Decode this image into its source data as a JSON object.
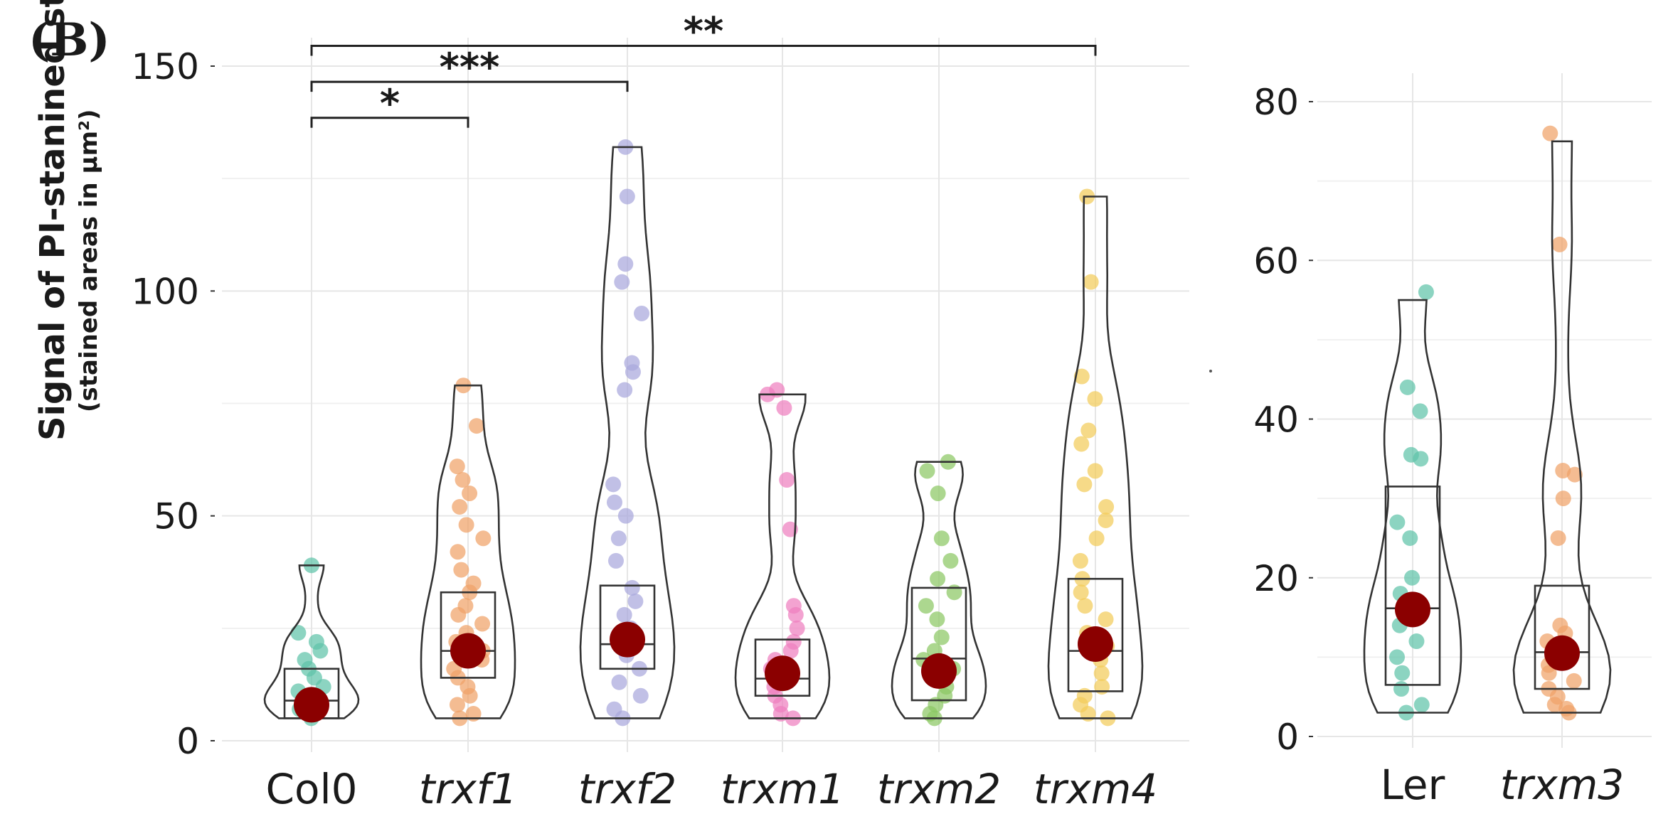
{
  "panel_label": "(B)",
  "chart_data": [
    {
      "type": "violin",
      "ylabel": "Signal of PI-stanined starch",
      "ylabel_sub": "(stained areas in µm²)",
      "ylim": [
        0,
        150
      ],
      "yticks": [
        0,
        50,
        100,
        150
      ],
      "grid": true,
      "categories": [
        "Col0",
        "trxf1",
        "trxf2",
        "trxm1",
        "trxm2",
        "trxm4"
      ],
      "italic_categories": [
        false,
        true,
        true,
        true,
        true,
        true
      ],
      "colors": [
        "#5fc4a9",
        "#f0a268",
        "#a9a8dc",
        "#ee7fbf",
        "#8cc864",
        "#f2cc5a"
      ],
      "groups": [
        {
          "name": "Col0",
          "mean": 8,
          "box": [
            5,
            16
          ],
          "violin_max": 39,
          "points": [
            5,
            6,
            7,
            8,
            9,
            10,
            11,
            12,
            14,
            16,
            18,
            20,
            22,
            24,
            39
          ]
        },
        {
          "name": "trxf1",
          "mean": 20,
          "box": [
            14,
            33
          ],
          "violin_max": 79,
          "points": [
            5,
            6,
            8,
            10,
            12,
            14,
            16,
            18,
            20,
            22,
            24,
            26,
            28,
            30,
            33,
            35,
            38,
            42,
            45,
            48,
            52,
            55,
            58,
            61,
            70,
            79
          ]
        },
        {
          "name": "trxf2",
          "mean": 22.5,
          "box": [
            16,
            34.5
          ],
          "violin_max": 132,
          "points": [
            5,
            7,
            10,
            13,
            16,
            19,
            22,
            25,
            28,
            31,
            34,
            40,
            45,
            50,
            53,
            57,
            78,
            82,
            84,
            95,
            102,
            106,
            121,
            132
          ]
        },
        {
          "name": "trxm1",
          "mean": 15,
          "box": [
            10,
            22.5
          ],
          "violin_max": 77,
          "points": [
            5,
            6,
            8,
            10,
            12,
            14,
            16,
            18,
            20,
            22,
            25,
            28,
            30,
            47,
            58,
            74,
            77,
            78
          ]
        },
        {
          "name": "trxm2",
          "mean": 15.5,
          "box": [
            9,
            34
          ],
          "violin_max": 62,
          "points": [
            5,
            6,
            8,
            10,
            12,
            14,
            16,
            18,
            20,
            23,
            27,
            30,
            33,
            36,
            40,
            45,
            55,
            60,
            62
          ]
        },
        {
          "name": "trxm4",
          "mean": 21.5,
          "box": [
            11,
            36
          ],
          "violin_max": 121,
          "points": [
            5,
            6,
            8,
            10,
            12,
            15,
            18,
            21,
            24,
            27,
            30,
            33,
            36,
            40,
            45,
            49,
            52,
            57,
            60,
            66,
            69,
            76,
            81,
            102,
            121
          ]
        }
      ],
      "significance": [
        {
          "from": "Col0",
          "to": "trxf1",
          "label": "*",
          "y": 138.5
        },
        {
          "from": "Col0",
          "to": "trxf2",
          "label": "***",
          "y": 146.5
        },
        {
          "from": "Col0",
          "to": "trxm4",
          "label": "**",
          "y": 154.5
        }
      ]
    },
    {
      "type": "violin",
      "ylim": [
        0,
        80
      ],
      "yticks": [
        0,
        20,
        40,
        60,
        80
      ],
      "grid": true,
      "categories": [
        "Ler",
        "trxm3"
      ],
      "italic_categories": [
        false,
        true
      ],
      "colors": [
        "#5fc4a9",
        "#f0a268"
      ],
      "groups": [
        {
          "name": "Ler",
          "mean": 16,
          "box": [
            6.5,
            31.5
          ],
          "violin_max": 55,
          "points": [
            3,
            4,
            6,
            8,
            10,
            12,
            14,
            16,
            18,
            20,
            25,
            27,
            35,
            35.5,
            41,
            44,
            56
          ]
        },
        {
          "name": "trxm3",
          "mean": 10.5,
          "box": [
            6,
            19
          ],
          "violin_max": 75,
          "points": [
            3,
            3.5,
            4,
            5,
            6,
            7,
            8,
            9,
            10,
            11,
            12,
            13,
            14,
            25,
            30,
            33,
            33.5,
            62,
            76
          ]
        }
      ]
    }
  ]
}
